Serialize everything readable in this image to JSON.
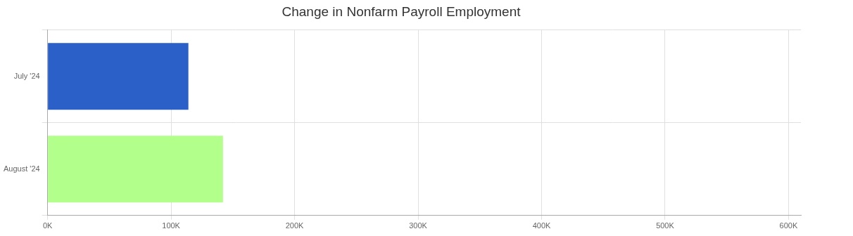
{
  "chart_data": {
    "type": "bar",
    "orientation": "horizontal",
    "title": "Change in Nonfarm Payroll Employment",
    "categories": [
      "July '24",
      "August '24"
    ],
    "values": [
      114000,
      142000
    ],
    "colors": [
      "#2a60c8",
      "#b3ff8c"
    ],
    "xlim": [
      0,
      610000
    ],
    "xticks": [
      {
        "value": 0,
        "label": "0K"
      },
      {
        "value": 100000,
        "label": "100K"
      },
      {
        "value": 200000,
        "label": "200K"
      },
      {
        "value": 300000,
        "label": "300K"
      },
      {
        "value": 400000,
        "label": "400K"
      },
      {
        "value": 500000,
        "label": "500K"
      },
      {
        "value": 600000,
        "label": "600K"
      }
    ],
    "grid": true
  }
}
